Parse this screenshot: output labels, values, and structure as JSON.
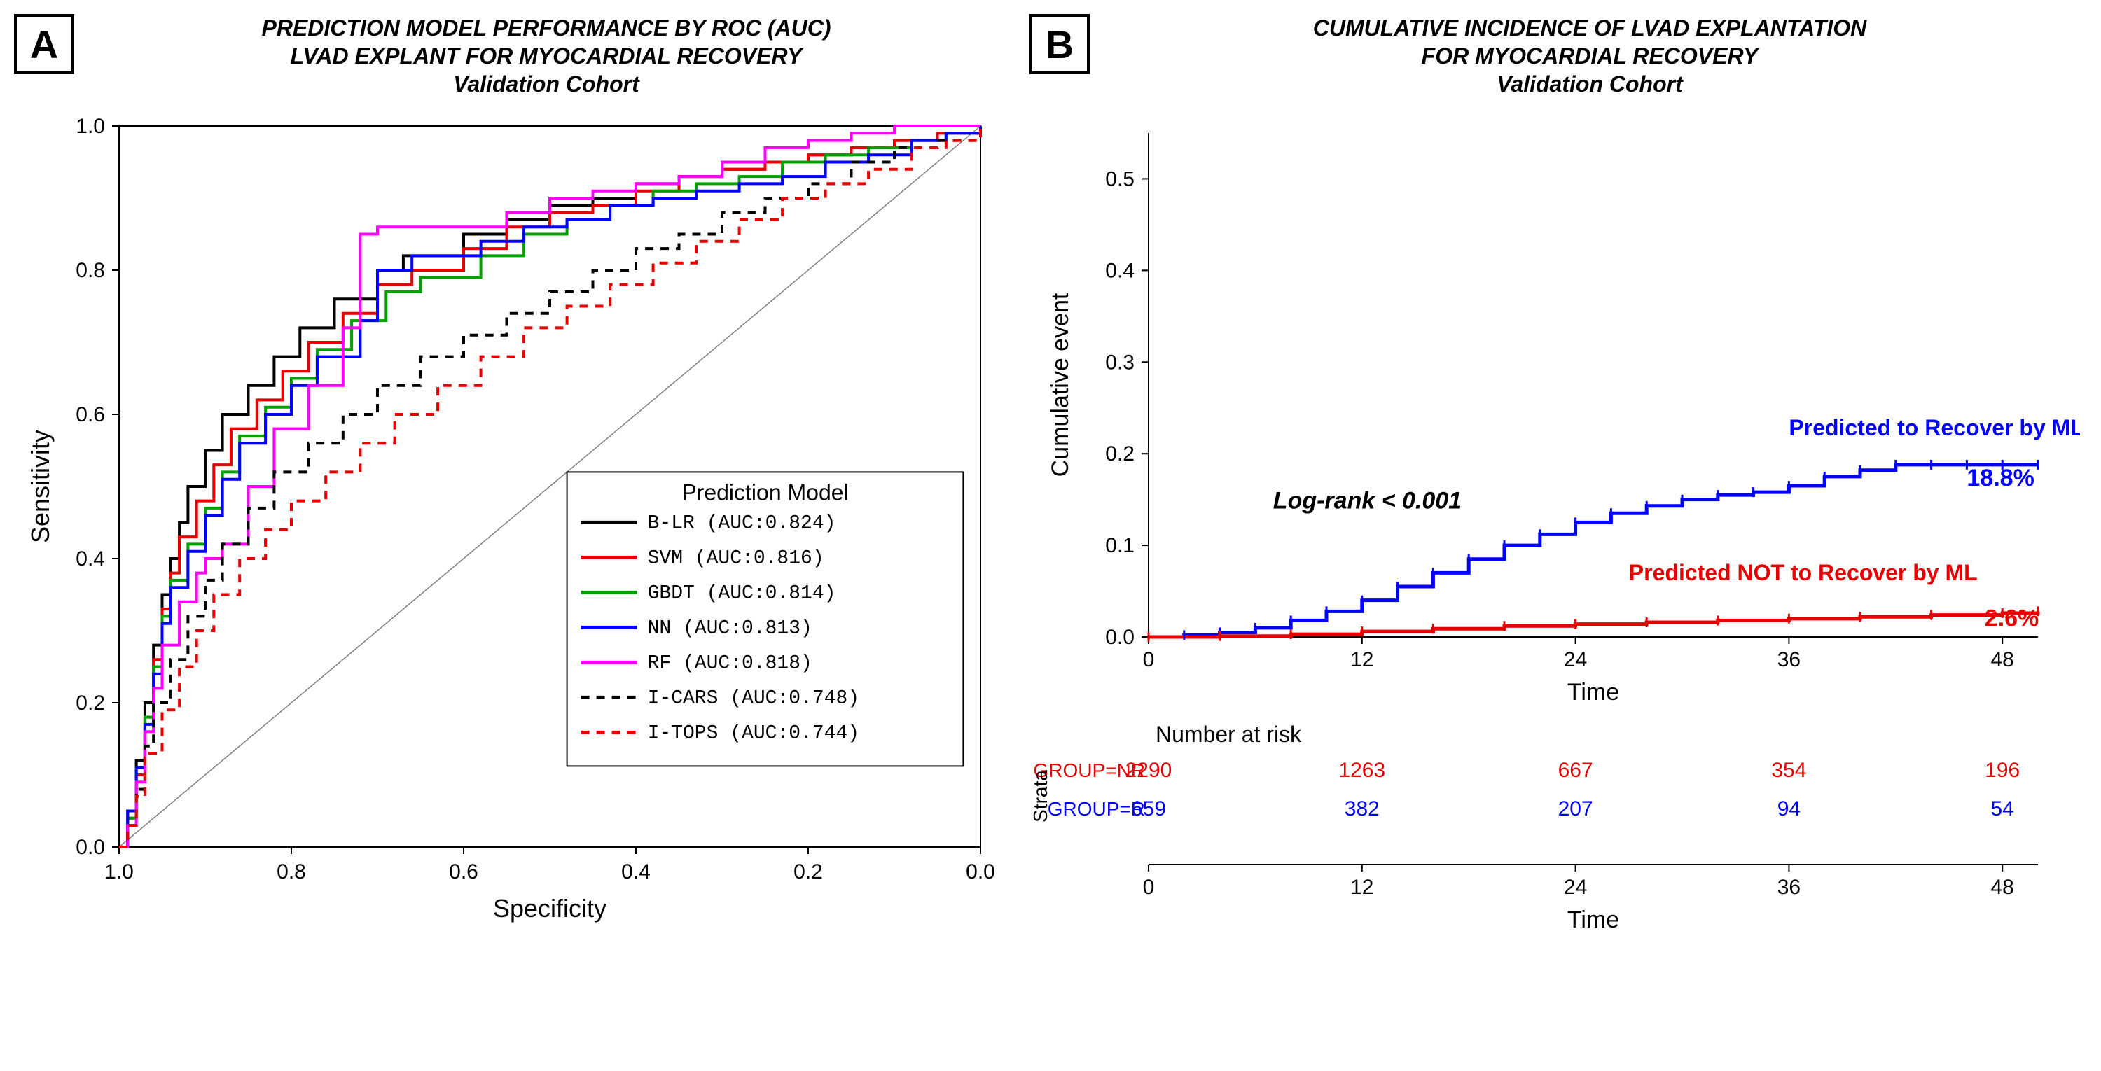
{
  "panelA": {
    "badge": "A",
    "title_line1": "PREDICTION MODEL PERFORMANCE BY ROC (AUC)",
    "title_line2": "LVAD EXPLANT FOR MYOCARDIAL RECOVERY",
    "title_line3": "Validation Cohort",
    "xlabel": "Specificity",
    "ylabel": "Sensitivity",
    "xlim": [
      1.0,
      0.0
    ],
    "ylim": [
      0.0,
      1.0
    ],
    "xticks": [
      1.0,
      0.8,
      0.6,
      0.4,
      0.2,
      0.0
    ],
    "yticks": [
      0.0,
      0.2,
      0.4,
      0.6,
      0.8,
      1.0
    ],
    "legend_title": "Prediction Model",
    "series": [
      {
        "name": "B-LR",
        "label": "B-LR   (AUC:0.824)",
        "color": "#000000",
        "dash": "",
        "width": 4,
        "points": [
          [
            1.0,
            0.0
          ],
          [
            0.99,
            0.05
          ],
          [
            0.98,
            0.12
          ],
          [
            0.97,
            0.2
          ],
          [
            0.96,
            0.28
          ],
          [
            0.95,
            0.35
          ],
          [
            0.94,
            0.4
          ],
          [
            0.93,
            0.45
          ],
          [
            0.92,
            0.5
          ],
          [
            0.9,
            0.55
          ],
          [
            0.88,
            0.6
          ],
          [
            0.85,
            0.64
          ],
          [
            0.82,
            0.68
          ],
          [
            0.79,
            0.72
          ],
          [
            0.75,
            0.76
          ],
          [
            0.7,
            0.8
          ],
          [
            0.67,
            0.82
          ],
          [
            0.6,
            0.85
          ],
          [
            0.55,
            0.87
          ],
          [
            0.5,
            0.89
          ],
          [
            0.45,
            0.9
          ],
          [
            0.4,
            0.92
          ],
          [
            0.35,
            0.93
          ],
          [
            0.3,
            0.94
          ],
          [
            0.25,
            0.95
          ],
          [
            0.2,
            0.96
          ],
          [
            0.15,
            0.97
          ],
          [
            0.1,
            0.98
          ],
          [
            0.05,
            0.99
          ],
          [
            0.0,
            1.0
          ]
        ]
      },
      {
        "name": "SVM",
        "label": "SVM    (AUC:0.816)",
        "color": "#e60000",
        "dash": "",
        "width": 4,
        "points": [
          [
            1.0,
            0.0
          ],
          [
            0.99,
            0.04
          ],
          [
            0.98,
            0.1
          ],
          [
            0.97,
            0.18
          ],
          [
            0.96,
            0.26
          ],
          [
            0.95,
            0.33
          ],
          [
            0.94,
            0.38
          ],
          [
            0.93,
            0.43
          ],
          [
            0.91,
            0.48
          ],
          [
            0.89,
            0.53
          ],
          [
            0.87,
            0.58
          ],
          [
            0.84,
            0.62
          ],
          [
            0.81,
            0.66
          ],
          [
            0.78,
            0.7
          ],
          [
            0.74,
            0.74
          ],
          [
            0.7,
            0.78
          ],
          [
            0.66,
            0.8
          ],
          [
            0.6,
            0.83
          ],
          [
            0.55,
            0.86
          ],
          [
            0.5,
            0.88
          ],
          [
            0.45,
            0.89
          ],
          [
            0.4,
            0.91
          ],
          [
            0.35,
            0.93
          ],
          [
            0.3,
            0.94
          ],
          [
            0.25,
            0.95
          ],
          [
            0.2,
            0.96
          ],
          [
            0.15,
            0.97
          ],
          [
            0.1,
            0.98
          ],
          [
            0.05,
            0.99
          ],
          [
            0.0,
            1.0
          ]
        ]
      },
      {
        "name": "GBDT",
        "label": "GBDT   (AUC:0.814)",
        "color": "#00a000",
        "dash": "",
        "width": 4,
        "points": [
          [
            1.0,
            0.0
          ],
          [
            0.99,
            0.04
          ],
          [
            0.98,
            0.11
          ],
          [
            0.97,
            0.18
          ],
          [
            0.96,
            0.25
          ],
          [
            0.95,
            0.32
          ],
          [
            0.94,
            0.37
          ],
          [
            0.92,
            0.42
          ],
          [
            0.9,
            0.47
          ],
          [
            0.88,
            0.52
          ],
          [
            0.86,
            0.57
          ],
          [
            0.83,
            0.61
          ],
          [
            0.8,
            0.65
          ],
          [
            0.77,
            0.69
          ],
          [
            0.73,
            0.73
          ],
          [
            0.69,
            0.77
          ],
          [
            0.65,
            0.79
          ],
          [
            0.58,
            0.82
          ],
          [
            0.53,
            0.85
          ],
          [
            0.48,
            0.87
          ],
          [
            0.43,
            0.89
          ],
          [
            0.38,
            0.91
          ],
          [
            0.33,
            0.92
          ],
          [
            0.28,
            0.93
          ],
          [
            0.23,
            0.95
          ],
          [
            0.18,
            0.96
          ],
          [
            0.13,
            0.97
          ],
          [
            0.08,
            0.98
          ],
          [
            0.04,
            0.99
          ],
          [
            0.0,
            1.0
          ]
        ]
      },
      {
        "name": "NN",
        "label": "NN     (AUC:0.813)",
        "color": "#0000ff",
        "dash": "",
        "width": 4,
        "points": [
          [
            1.0,
            0.0
          ],
          [
            0.99,
            0.05
          ],
          [
            0.98,
            0.11
          ],
          [
            0.97,
            0.17
          ],
          [
            0.96,
            0.24
          ],
          [
            0.95,
            0.31
          ],
          [
            0.94,
            0.36
          ],
          [
            0.92,
            0.41
          ],
          [
            0.9,
            0.46
          ],
          [
            0.88,
            0.51
          ],
          [
            0.86,
            0.56
          ],
          [
            0.83,
            0.6
          ],
          [
            0.8,
            0.64
          ],
          [
            0.77,
            0.68
          ],
          [
            0.72,
            0.73
          ],
          [
            0.7,
            0.8
          ],
          [
            0.66,
            0.82
          ],
          [
            0.58,
            0.84
          ],
          [
            0.53,
            0.86
          ],
          [
            0.48,
            0.87
          ],
          [
            0.43,
            0.89
          ],
          [
            0.38,
            0.9
          ],
          [
            0.33,
            0.91
          ],
          [
            0.28,
            0.92
          ],
          [
            0.23,
            0.93
          ],
          [
            0.18,
            0.95
          ],
          [
            0.13,
            0.96
          ],
          [
            0.08,
            0.98
          ],
          [
            0.04,
            0.99
          ],
          [
            0.0,
            1.0
          ]
        ]
      },
      {
        "name": "RF",
        "label": "RF     (AUC:0.818)",
        "color": "#ff00ff",
        "dash": "",
        "width": 4,
        "points": [
          [
            1.0,
            0.0
          ],
          [
            0.99,
            0.03
          ],
          [
            0.98,
            0.09
          ],
          [
            0.97,
            0.16
          ],
          [
            0.96,
            0.22
          ],
          [
            0.95,
            0.28
          ],
          [
            0.93,
            0.34
          ],
          [
            0.91,
            0.38
          ],
          [
            0.9,
            0.4
          ],
          [
            0.88,
            0.42
          ],
          [
            0.85,
            0.5
          ],
          [
            0.82,
            0.58
          ],
          [
            0.78,
            0.64
          ],
          [
            0.74,
            0.72
          ],
          [
            0.72,
            0.85
          ],
          [
            0.7,
            0.86
          ],
          [
            0.62,
            0.86
          ],
          [
            0.55,
            0.88
          ],
          [
            0.5,
            0.9
          ],
          [
            0.45,
            0.91
          ],
          [
            0.4,
            0.92
          ],
          [
            0.35,
            0.93
          ],
          [
            0.3,
            0.95
          ],
          [
            0.25,
            0.97
          ],
          [
            0.2,
            0.98
          ],
          [
            0.15,
            0.99
          ],
          [
            0.1,
            1.0
          ],
          [
            0.0,
            1.0
          ]
        ]
      },
      {
        "name": "I-CARS",
        "label": "I-CARS (AUC:0.748)",
        "color": "#000000",
        "dash": "12,10",
        "width": 4,
        "points": [
          [
            1.0,
            0.0
          ],
          [
            0.99,
            0.03
          ],
          [
            0.98,
            0.08
          ],
          [
            0.97,
            0.14
          ],
          [
            0.96,
            0.2
          ],
          [
            0.94,
            0.26
          ],
          [
            0.92,
            0.32
          ],
          [
            0.9,
            0.37
          ],
          [
            0.88,
            0.42
          ],
          [
            0.85,
            0.47
          ],
          [
            0.82,
            0.52
          ],
          [
            0.78,
            0.56
          ],
          [
            0.74,
            0.6
          ],
          [
            0.7,
            0.64
          ],
          [
            0.65,
            0.68
          ],
          [
            0.6,
            0.71
          ],
          [
            0.55,
            0.74
          ],
          [
            0.5,
            0.77
          ],
          [
            0.45,
            0.8
          ],
          [
            0.4,
            0.83
          ],
          [
            0.35,
            0.85
          ],
          [
            0.3,
            0.88
          ],
          [
            0.25,
            0.9
          ],
          [
            0.2,
            0.92
          ],
          [
            0.15,
            0.95
          ],
          [
            0.1,
            0.97
          ],
          [
            0.05,
            0.98
          ],
          [
            0.0,
            1.0
          ]
        ]
      },
      {
        "name": "I-TOPS",
        "label": "I-TOPS (AUC:0.744)",
        "color": "#e60000",
        "dash": "12,10",
        "width": 4,
        "points": [
          [
            1.0,
            0.0
          ],
          [
            0.99,
            0.03
          ],
          [
            0.98,
            0.07
          ],
          [
            0.97,
            0.13
          ],
          [
            0.95,
            0.19
          ],
          [
            0.93,
            0.25
          ],
          [
            0.91,
            0.3
          ],
          [
            0.89,
            0.35
          ],
          [
            0.86,
            0.4
          ],
          [
            0.83,
            0.44
          ],
          [
            0.8,
            0.48
          ],
          [
            0.76,
            0.52
          ],
          [
            0.72,
            0.56
          ],
          [
            0.68,
            0.6
          ],
          [
            0.63,
            0.64
          ],
          [
            0.58,
            0.68
          ],
          [
            0.53,
            0.72
          ],
          [
            0.48,
            0.75
          ],
          [
            0.43,
            0.78
          ],
          [
            0.38,
            0.81
          ],
          [
            0.33,
            0.84
          ],
          [
            0.28,
            0.87
          ],
          [
            0.23,
            0.9
          ],
          [
            0.18,
            0.92
          ],
          [
            0.13,
            0.94
          ],
          [
            0.08,
            0.97
          ],
          [
            0.04,
            0.98
          ],
          [
            0.0,
            1.0
          ]
        ]
      }
    ]
  },
  "panelB": {
    "badge": "B",
    "title_line1": "CUMULATIVE INCIDENCE OF LVAD EXPLANTATION",
    "title_line2": "FOR MYOCARDIAL RECOVERY",
    "title_line3": "Validation Cohort",
    "xlabel": "Time",
    "ylabel": "Cumulative event",
    "xlim": [
      0,
      50
    ],
    "ylim": [
      0.0,
      0.55
    ],
    "xticks": [
      0,
      12,
      24,
      36,
      48
    ],
    "yticks": [
      0.0,
      0.1,
      0.2,
      0.3,
      0.4,
      0.5
    ],
    "logrank_label": "Log-rank < 0.001",
    "recover_label": "Predicted to Recover by ML",
    "recover_value": "18.8%",
    "notrecover_label": "Predicted NOT to Recover by ML",
    "notrecover_value": "2.6%",
    "colors": {
      "recover": "#0000ff",
      "notrecover": "#e60000",
      "text": "#000000"
    },
    "curves": {
      "recover": [
        [
          0,
          0.0
        ],
        [
          2,
          0.002
        ],
        [
          4,
          0.005
        ],
        [
          6,
          0.01
        ],
        [
          8,
          0.018
        ],
        [
          10,
          0.028
        ],
        [
          12,
          0.04
        ],
        [
          14,
          0.055
        ],
        [
          16,
          0.07
        ],
        [
          18,
          0.085
        ],
        [
          20,
          0.1
        ],
        [
          22,
          0.112
        ],
        [
          24,
          0.125
        ],
        [
          26,
          0.135
        ],
        [
          28,
          0.143
        ],
        [
          30,
          0.15
        ],
        [
          32,
          0.155
        ],
        [
          34,
          0.158
        ],
        [
          36,
          0.165
        ],
        [
          38,
          0.175
        ],
        [
          40,
          0.182
        ],
        [
          42,
          0.188
        ],
        [
          44,
          0.188
        ],
        [
          46,
          0.188
        ],
        [
          48,
          0.188
        ],
        [
          50,
          0.188
        ]
      ],
      "notrecover": [
        [
          0,
          0.0
        ],
        [
          4,
          0.001
        ],
        [
          8,
          0.003
        ],
        [
          12,
          0.006
        ],
        [
          16,
          0.009
        ],
        [
          20,
          0.012
        ],
        [
          24,
          0.014
        ],
        [
          28,
          0.016
        ],
        [
          32,
          0.018
        ],
        [
          36,
          0.02
        ],
        [
          40,
          0.022
        ],
        [
          44,
          0.024
        ],
        [
          48,
          0.026
        ],
        [
          50,
          0.028
        ]
      ]
    },
    "risk": {
      "header": "Number at risk",
      "strata_label": "Strata",
      "xticks": [
        0,
        12,
        24,
        36,
        48
      ],
      "rows": [
        {
          "label": "GROUP=NR",
          "color": "#e60000",
          "values": [
            2290,
            1263,
            667,
            354,
            196
          ]
        },
        {
          "label": "GROUP=R",
          "color": "#0000ff",
          "values": [
            659,
            382,
            207,
            94,
            54
          ]
        }
      ],
      "xlabel": "Time"
    }
  }
}
